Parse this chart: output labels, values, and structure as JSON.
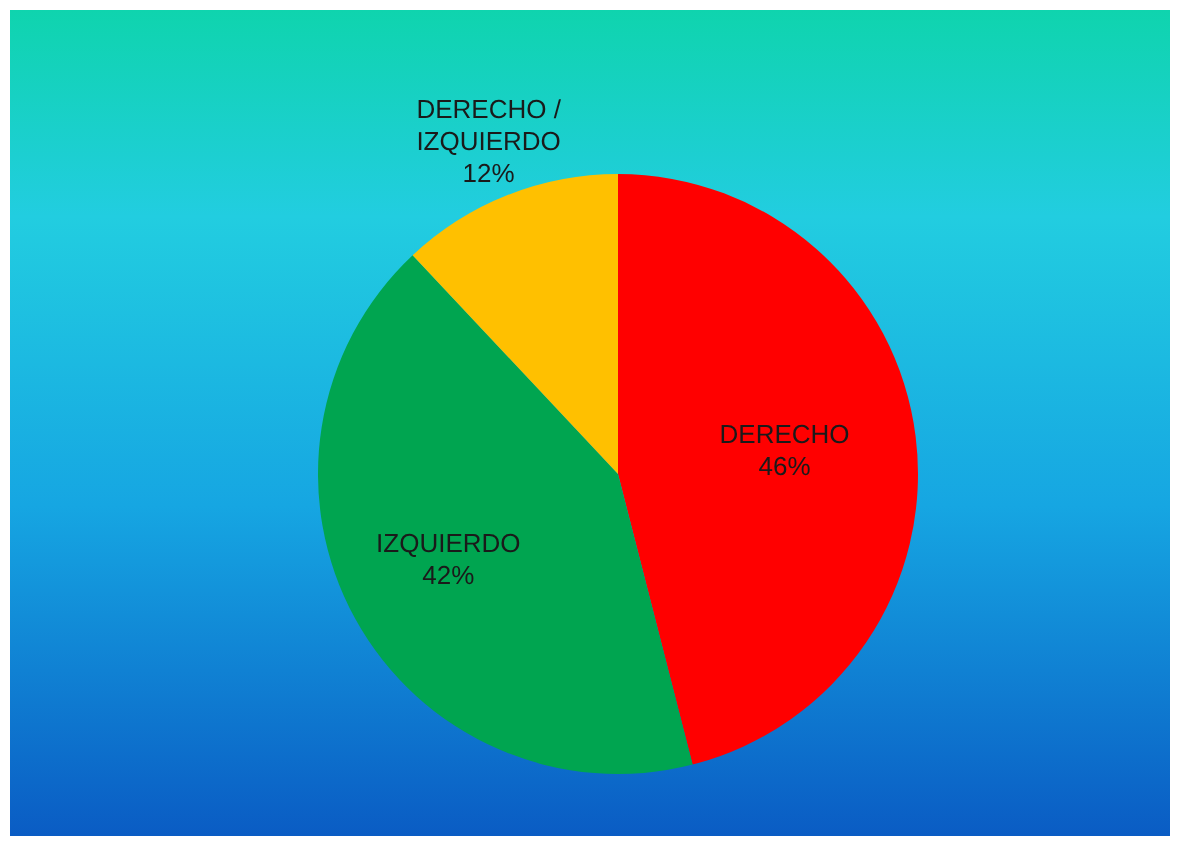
{
  "chart_data": {
    "type": "pie",
    "categories": [
      "DERECHO",
      "IZQUIERDO",
      "DERECHO / IZQUIERDO"
    ],
    "values": [
      46,
      42,
      12
    ],
    "colors": [
      "#ff0000",
      "#00a550",
      "#ffc000"
    ],
    "value_labels": [
      "46%",
      "42%",
      "12%"
    ]
  }
}
